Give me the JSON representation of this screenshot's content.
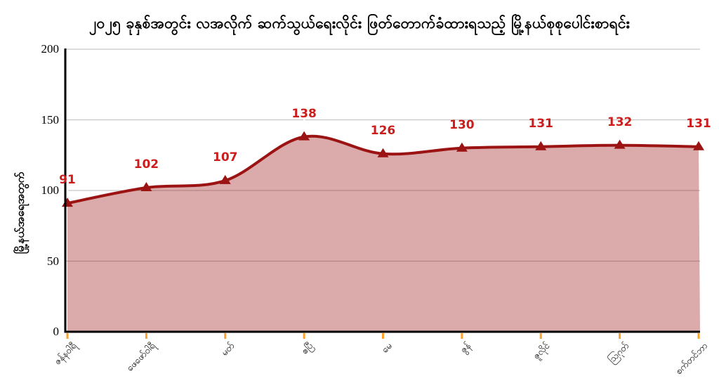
{
  "chart_data": {
    "type": "area",
    "title": "၂၀၂၅ ခုနှစ်အတွင်း လအလိုက် ဆက်သွယ်ရေးလိုင်း ဖြတ်တောက်ခံထားရသည့် မြို့နယ်စုစုပေါင်းစာရင်း",
    "ylabel": "မြို့နယ်အရေအတွက်",
    "xlabel": "",
    "categories": [
      "ဇန်နဝါရီ",
      "ဖေဖော်ဝါရီ",
      "မတ်",
      "ဧပြီ",
      "မေ",
      "ဇွန်",
      "ဇူလိုင်",
      "ဩဂုတ်",
      "စက်တင်ဘာ"
    ],
    "values": [
      91,
      102,
      107,
      138,
      126,
      130,
      131,
      132,
      131
    ],
    "ylim": [
      0,
      200
    ],
    "yticks": [
      0,
      50,
      100,
      150,
      200
    ],
    "grid": true,
    "legend": "none",
    "marker_shape": "triangle-up",
    "colors": {
      "line": "#9B1313",
      "marker": "#9B1313",
      "fill_rgba": "rgba(155,19,19,0.36)",
      "data_label": "#CC1D1D",
      "x_tick": "#FFA028",
      "gridline": "#C6C6C6",
      "axis": "#000000",
      "leader_line": "#FFFFFF",
      "background": "#FFFFFF",
      "title_text": "#000000"
    }
  }
}
